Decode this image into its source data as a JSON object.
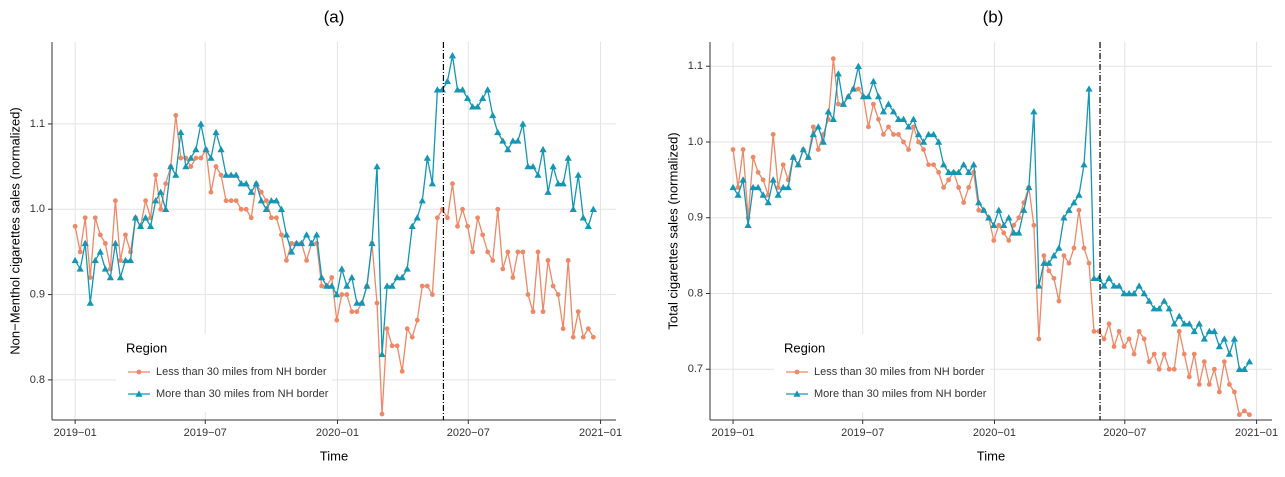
{
  "chart_data": [
    {
      "type": "line",
      "title": "(a)",
      "x_label": "Time",
      "y_label": "Non−Menthol cigarettes sales (normalized)",
      "x": [
        0,
        1,
        2,
        3,
        4,
        5,
        6,
        7,
        8,
        9,
        10,
        11,
        12,
        13,
        14,
        15,
        16,
        17,
        18,
        19,
        20,
        21,
        22,
        23,
        24,
        25,
        26,
        27,
        28,
        29,
        30,
        31,
        32,
        33,
        34,
        35,
        36,
        37,
        38,
        39,
        40,
        41,
        42,
        43,
        44,
        45,
        46,
        47,
        48,
        49,
        50,
        51,
        52,
        53,
        54,
        55,
        56,
        57,
        58,
        59,
        60,
        61,
        62,
        63,
        64,
        65,
        66,
        67,
        68,
        69,
        70,
        71,
        72,
        73,
        74,
        75,
        76,
        77,
        78,
        79,
        80,
        81,
        82,
        83,
        84,
        85,
        86,
        87,
        88,
        89,
        90,
        91,
        92,
        93,
        94,
        95,
        96,
        97,
        98,
        99,
        100,
        101,
        102,
        103
      ],
      "series": [
        {
          "name": "Less than 30 miles from NH border",
          "color": "#ee8866",
          "marker": "circle",
          "values": [
            0.98,
            0.95,
            0.99,
            0.92,
            0.99,
            0.97,
            0.96,
            0.93,
            1.01,
            0.94,
            0.97,
            0.95,
            0.99,
            0.98,
            1.01,
            0.99,
            1.04,
            1.0,
            1.03,
            1.05,
            1.11,
            1.06,
            1.06,
            1.05,
            1.06,
            1.06,
            1.07,
            1.02,
            1.05,
            1.04,
            1.01,
            1.01,
            1.01,
            1.0,
            1.0,
            0.99,
            1.03,
            1.02,
            1.01,
            0.99,
            0.99,
            0.97,
            0.94,
            0.96,
            0.96,
            0.96,
            0.94,
            0.96,
            0.96,
            0.91,
            0.91,
            0.92,
            0.87,
            0.9,
            0.9,
            0.88,
            0.88,
            0.89,
            0.91,
            0.96,
            0.89,
            0.76,
            0.86,
            0.84,
            0.84,
            0.81,
            0.86,
            0.85,
            0.87,
            0.91,
            0.91,
            0.9,
            0.99,
            1.0,
            0.99,
            1.03,
            0.98,
            1.0,
            0.98,
            0.95,
            0.99,
            0.97,
            0.95,
            0.94,
            1.0,
            0.93,
            0.95,
            0.92,
            0.95,
            0.95,
            0.9,
            0.88,
            0.95,
            0.88,
            0.94,
            0.91,
            0.9,
            0.86,
            0.94,
            0.85,
            0.88,
            0.85,
            0.86,
            0.85
          ]
        },
        {
          "name": "More than 30 miles from NH border",
          "color": "#1496b4",
          "marker": "triangle",
          "values": [
            0.94,
            0.93,
            0.96,
            0.89,
            0.94,
            0.95,
            0.93,
            0.92,
            0.96,
            0.92,
            0.94,
            0.94,
            0.99,
            0.98,
            0.99,
            0.98,
            1.01,
            1.02,
            1.0,
            1.05,
            1.04,
            1.09,
            1.05,
            1.06,
            1.07,
            1.1,
            1.07,
            1.06,
            1.09,
            1.07,
            1.04,
            1.04,
            1.04,
            1.03,
            1.03,
            1.02,
            1.03,
            1.01,
            1.0,
            1.01,
            1.01,
            1.0,
            0.97,
            0.95,
            0.96,
            0.96,
            0.97,
            0.96,
            0.97,
            0.92,
            0.91,
            0.91,
            0.9,
            0.93,
            0.91,
            0.92,
            0.89,
            0.89,
            0.91,
            0.96,
            1.05,
            0.83,
            0.91,
            0.91,
            0.92,
            0.92,
            0.93,
            0.98,
            0.99,
            1.01,
            1.06,
            1.03,
            1.14,
            1.14,
            1.15,
            1.18,
            1.14,
            1.14,
            1.13,
            1.12,
            1.12,
            1.13,
            1.14,
            1.11,
            1.09,
            1.08,
            1.07,
            1.08,
            1.08,
            1.1,
            1.05,
            1.05,
            1.04,
            1.07,
            1.02,
            1.05,
            1.03,
            1.03,
            1.06,
            1.0,
            1.04,
            0.99,
            0.98,
            1.0
          ]
        }
      ],
      "xlim": [
        -4.6,
        107.5
      ],
      "xticks": [
        {
          "value": 0,
          "label": "2019−01"
        },
        {
          "value": 25.86,
          "label": "2019−07"
        },
        {
          "value": 52.14,
          "label": "2020−01"
        },
        {
          "value": 78.14,
          "label": "2020−07"
        },
        {
          "value": 104.43,
          "label": "2021−01"
        }
      ],
      "ylim": [
        0.753,
        1.196
      ],
      "yticks": [
        0.8,
        0.9,
        {
          "value": 1.0,
          "label": "1.0"
        },
        1.1
      ],
      "vline_x": 73.2,
      "grid": true,
      "legend_title": "Region",
      "legend_position": "bottom-left"
    },
    {
      "type": "line",
      "title": "(b)",
      "x_label": "Time",
      "y_label": "Total cigarettes sales (normalized)",
      "x": [
        0,
        1,
        2,
        3,
        4,
        5,
        6,
        7,
        8,
        9,
        10,
        11,
        12,
        13,
        14,
        15,
        16,
        17,
        18,
        19,
        20,
        21,
        22,
        23,
        24,
        25,
        26,
        27,
        28,
        29,
        30,
        31,
        32,
        33,
        34,
        35,
        36,
        37,
        38,
        39,
        40,
        41,
        42,
        43,
        44,
        45,
        46,
        47,
        48,
        49,
        50,
        51,
        52,
        53,
        54,
        55,
        56,
        57,
        58,
        59,
        60,
        61,
        62,
        63,
        64,
        65,
        66,
        67,
        68,
        69,
        70,
        71,
        72,
        73,
        74,
        75,
        76,
        77,
        78,
        79,
        80,
        81,
        82,
        83,
        84,
        85,
        86,
        87,
        88,
        89,
        90,
        91,
        92,
        93,
        94,
        95,
        96,
        97,
        98,
        99,
        100,
        101,
        102,
        103
      ],
      "series": [
        {
          "name": "Less than 30 miles from NH border",
          "color": "#ee8866",
          "marker": "circle",
          "values": [
            0.99,
            0.94,
            0.99,
            0.9,
            0.98,
            0.96,
            0.95,
            0.93,
            1.01,
            0.94,
            0.97,
            0.95,
            0.98,
            0.97,
            0.99,
            0.98,
            1.02,
            0.99,
            1.01,
            1.03,
            1.11,
            1.05,
            1.05,
            1.06,
            1.07,
            1.07,
            1.06,
            1.02,
            1.05,
            1.03,
            1.01,
            1.02,
            1.01,
            1.01,
            1.0,
            0.99,
            1.02,
            1.0,
            0.99,
            0.97,
            0.97,
            0.96,
            0.94,
            0.95,
            0.96,
            0.94,
            0.92,
            0.94,
            0.96,
            0.91,
            0.91,
            0.9,
            0.87,
            0.89,
            0.88,
            0.87,
            0.89,
            0.9,
            0.92,
            0.94,
            0.89,
            0.74,
            0.85,
            0.83,
            0.82,
            0.79,
            0.85,
            0.84,
            0.86,
            0.91,
            0.86,
            0.84,
            0.75,
            0.75,
            0.74,
            0.76,
            0.73,
            0.75,
            0.73,
            0.74,
            0.72,
            0.75,
            0.74,
            0.71,
            0.72,
            0.7,
            0.72,
            0.7,
            0.7,
            0.75,
            0.72,
            0.69,
            0.72,
            0.68,
            0.71,
            0.68,
            0.7,
            0.67,
            0.71,
            0.68,
            0.67,
            0.64,
            0.645,
            0.64
          ]
        },
        {
          "name": "More than 30 miles from NH border",
          "color": "#1496b4",
          "marker": "triangle",
          "values": [
            0.94,
            0.93,
            0.95,
            0.89,
            0.94,
            0.94,
            0.93,
            0.92,
            0.95,
            0.93,
            0.94,
            0.94,
            0.98,
            0.97,
            0.99,
            0.98,
            1.01,
            1.02,
            1.0,
            1.04,
            1.03,
            1.09,
            1.05,
            1.06,
            1.07,
            1.1,
            1.06,
            1.06,
            1.08,
            1.06,
            1.04,
            1.05,
            1.04,
            1.03,
            1.03,
            1.02,
            1.03,
            1.01,
            1.0,
            1.01,
            1.01,
            1.0,
            0.97,
            0.96,
            0.96,
            0.96,
            0.97,
            0.96,
            0.97,
            0.92,
            0.91,
            0.9,
            0.89,
            0.91,
            0.89,
            0.9,
            0.88,
            0.88,
            0.91,
            0.94,
            1.04,
            0.81,
            0.84,
            0.84,
            0.85,
            0.86,
            0.9,
            0.91,
            0.92,
            0.93,
            0.97,
            1.07,
            0.82,
            0.82,
            0.81,
            0.82,
            0.81,
            0.81,
            0.8,
            0.8,
            0.8,
            0.81,
            0.8,
            0.79,
            0.78,
            0.78,
            0.79,
            0.78,
            0.76,
            0.77,
            0.76,
            0.76,
            0.75,
            0.76,
            0.74,
            0.75,
            0.75,
            0.73,
            0.74,
            0.72,
            0.74,
            0.7,
            0.7,
            0.71
          ]
        }
      ],
      "xlim": [
        -4.6,
        107.5
      ],
      "xticks": [
        {
          "value": 0,
          "label": "2019−01"
        },
        {
          "value": 25.86,
          "label": "2019−07"
        },
        {
          "value": 52.14,
          "label": "2020−01"
        },
        {
          "value": 78.14,
          "label": "2020−07"
        },
        {
          "value": 104.43,
          "label": "2021−01"
        }
      ],
      "ylim": [
        0.633,
        1.132
      ],
      "yticks": [
        0.7,
        0.8,
        0.9,
        {
          "value": 1.0,
          "label": "1.0"
        },
        1.1
      ],
      "vline_x": 73.2,
      "grid": true,
      "legend_title": "Region",
      "legend_position": "bottom-left"
    }
  ]
}
